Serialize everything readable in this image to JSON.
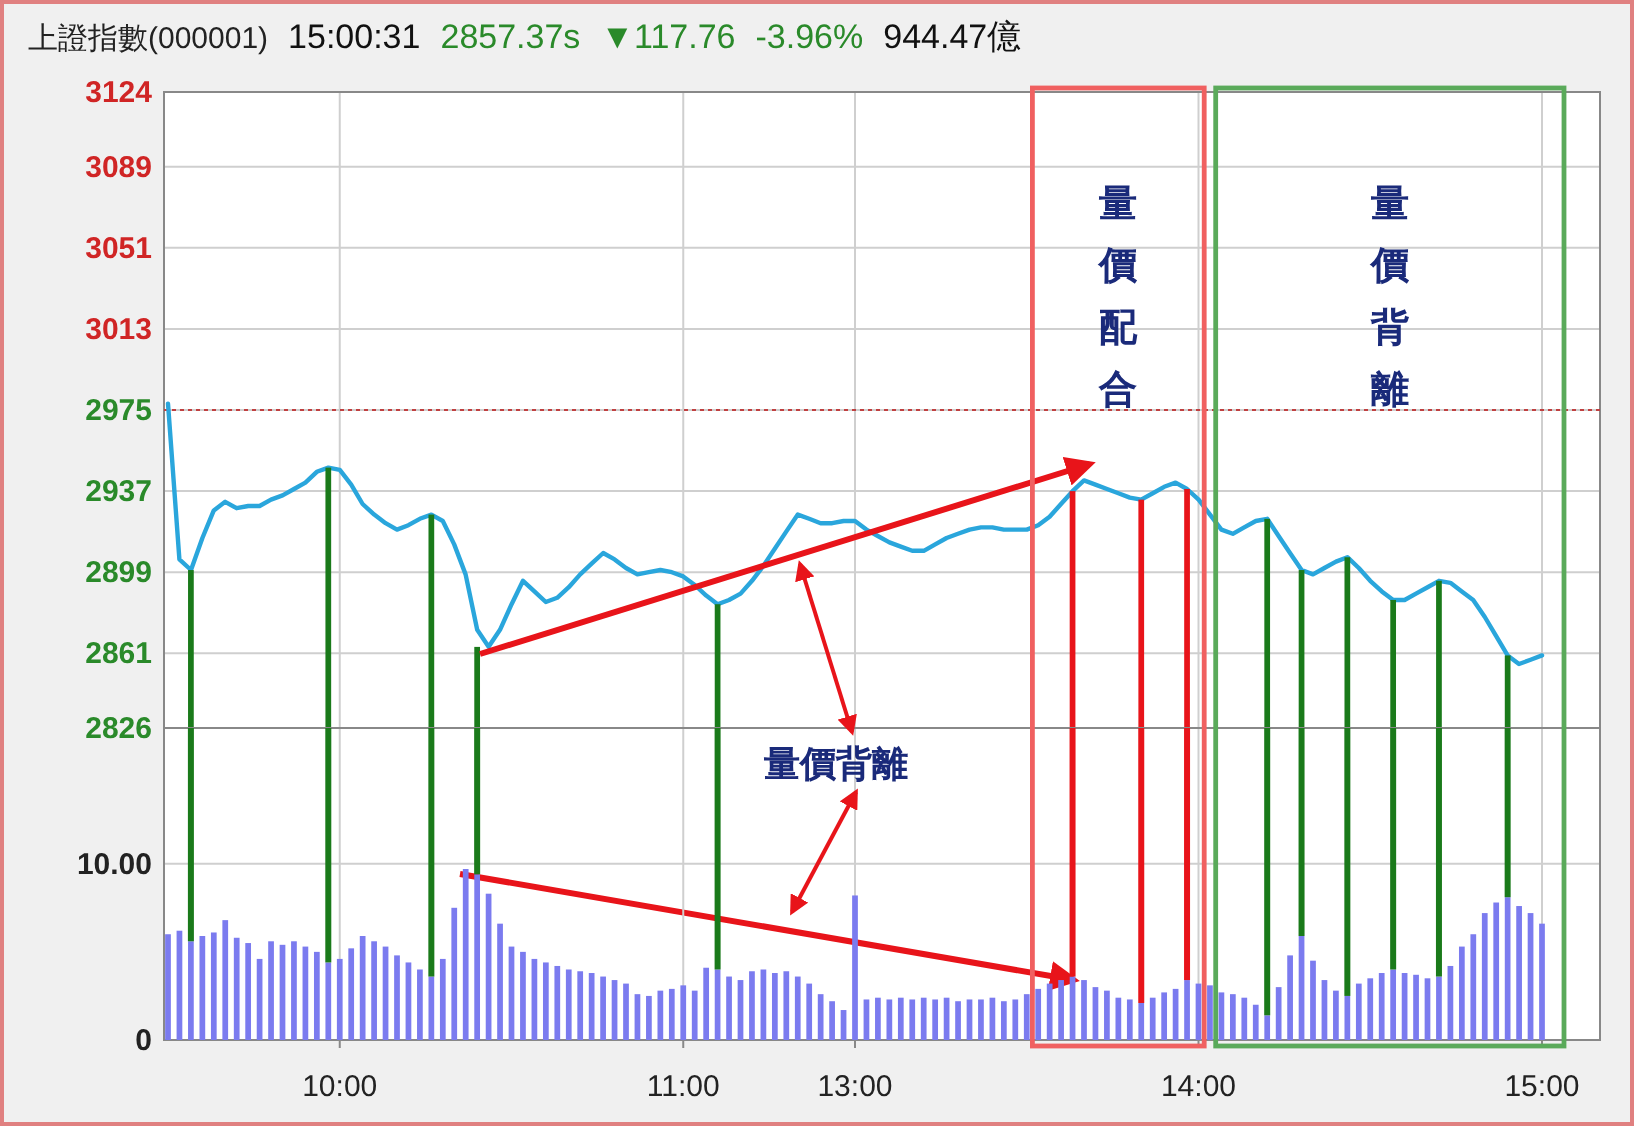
{
  "chart_data": [
    {
      "type": "line",
      "title": "上證指數(000001)",
      "annotations": [
        "15:00:31",
        "2857.37s",
        "▼117.76",
        "-3.96%",
        "944.47億",
        "量價配合",
        "量價背離"
      ],
      "categories": [
        null,
        null,
        null,
        null,
        null,
        null,
        null,
        null,
        null,
        null,
        null,
        null,
        null,
        null,
        null,
        null,
        null,
        null,
        null,
        null,
        null,
        null,
        null,
        null,
        null,
        null,
        null,
        null,
        null,
        null,
        null,
        null,
        null,
        null,
        null,
        null,
        null,
        null,
        null,
        null,
        null,
        null,
        null,
        null,
        null,
        null,
        null,
        null,
        null,
        null,
        null,
        null,
        null,
        null,
        null,
        null,
        null,
        null,
        null,
        null,
        null,
        null,
        null,
        null,
        null,
        null,
        null,
        null,
        null,
        null,
        null,
        null,
        null,
        null,
        null,
        null,
        null,
        null,
        null,
        null,
        null,
        null,
        null,
        null,
        null,
        null,
        null,
        null,
        null,
        null,
        null,
        null,
        null,
        null,
        null,
        null,
        null,
        null,
        null,
        null,
        null,
        null,
        null,
        null,
        null,
        null,
        null,
        null,
        null,
        null,
        null,
        null,
        null,
        null,
        null,
        null,
        null,
        null,
        null,
        null,
        null
      ],
      "ylim": [
        2826,
        3124
      ],
      "yticks": [
        2826,
        2861,
        2899,
        2937,
        2975,
        3013,
        3051,
        3089,
        3124
      ],
      "tick_labels": "y",
      "grid": true,
      "series": [
        {
          "values": [
            2978,
            2905,
            2900,
            2915,
            2928,
            2932,
            2929,
            2930,
            2930,
            2933,
            2935,
            2938,
            2941,
            2946,
            2948,
            2947,
            2940,
            2931,
            2926,
            2922,
            2919,
            2921,
            2924,
            2926,
            2923,
            2912,
            2898,
            2872,
            2864,
            2872,
            2884,
            2895,
            2890,
            2885,
            2887,
            2892,
            2898,
            2903,
            2908,
            2905,
            2901,
            2898,
            2899,
            2900,
            2899,
            2897,
            2893,
            2888,
            2884,
            2886,
            2889,
            2895,
            2902,
            2910,
            2918,
            2926,
            2924,
            2922,
            2922,
            2923,
            2923,
            2919,
            2916,
            2913,
            2911,
            2909,
            2909,
            2912,
            2915,
            2917,
            2919,
            2920,
            2920,
            2919,
            2919,
            2919,
            2921,
            2925,
            2931,
            2937,
            2942,
            2940,
            2938,
            2936,
            2934,
            2933,
            2936,
            2939,
            2941,
            2938,
            2933,
            2926,
            2919,
            2917,
            2920,
            2923,
            2924,
            2916,
            2908,
            2900,
            2898,
            2901,
            2904,
            2906,
            2901,
            2895,
            2890,
            2886,
            2886,
            2889,
            2892,
            2895,
            2894,
            2890,
            2886,
            2878,
            2869,
            2860,
            2856,
            2858,
            2860
          ],
          "color": "#2aa6dc"
        },
        {
          "type": "bar",
          "color": "#1a7a1a",
          "values": [
            null,
            null,
            2900,
            null,
            null,
            null,
            null,
            null,
            null,
            null,
            null,
            null,
            null,
            null,
            2948,
            null,
            null,
            null,
            null,
            null,
            null,
            null,
            null,
            2926,
            null,
            null,
            null,
            2864,
            null,
            null,
            null,
            null,
            null,
            null,
            null,
            null,
            null,
            null,
            null,
            null,
            null,
            null,
            null,
            null,
            null,
            null,
            null,
            null,
            2884,
            null,
            null,
            null,
            null,
            null,
            null,
            null,
            null,
            null,
            null,
            null,
            null,
            null,
            null,
            null,
            null,
            null,
            null,
            null,
            null,
            null,
            null,
            null,
            null,
            null,
            null,
            null,
            null,
            null,
            null,
            null,
            null,
            null,
            null,
            null,
            null,
            null,
            null,
            null,
            null,
            null,
            null,
            null,
            null,
            null,
            null,
            null,
            2924,
            null,
            null,
            2900,
            null,
            null,
            null,
            2906,
            null,
            null,
            null,
            2886,
            null,
            null,
            null,
            2895,
            null,
            null,
            null,
            null,
            null,
            2860,
            null,
            null,
            null
          ]
        },
        {
          "type": "bar",
          "color": "#e8141a",
          "values": [
            null,
            null,
            null,
            null,
            null,
            null,
            null,
            null,
            null,
            null,
            null,
            null,
            null,
            null,
            null,
            null,
            null,
            null,
            null,
            null,
            null,
            null,
            null,
            null,
            null,
            null,
            null,
            null,
            null,
            null,
            null,
            null,
            null,
            null,
            null,
            null,
            null,
            null,
            null,
            null,
            null,
            null,
            null,
            null,
            null,
            null,
            null,
            null,
            null,
            null,
            null,
            null,
            null,
            null,
            null,
            null,
            null,
            null,
            null,
            null,
            null,
            null,
            null,
            null,
            null,
            null,
            null,
            null,
            null,
            null,
            null,
            null,
            null,
            null,
            null,
            null,
            null,
            null,
            null,
            2937,
            null,
            null,
            null,
            null,
            null,
            2933,
            null,
            null,
            null,
            2938,
            null,
            null,
            null,
            null,
            null,
            null,
            null,
            null,
            null,
            null,
            null,
            null,
            null,
            null,
            null,
            null,
            null,
            null,
            null,
            null,
            null,
            null,
            null,
            null,
            null,
            null,
            null,
            null,
            null,
            null,
            null
          ]
        }
      ],
      "ref_lines": [
        {
          "axis": "y",
          "value": 2975,
          "color": "#c04040",
          "line_style": "dotted"
        }
      ]
    },
    {
      "type": "bar",
      "categories": [
        null,
        null,
        null,
        null,
        null,
        null,
        null,
        null,
        null,
        null,
        null,
        null,
        null,
        null,
        null,
        "10:00",
        null,
        null,
        null,
        null,
        null,
        null,
        null,
        null,
        null,
        null,
        null,
        null,
        null,
        null,
        null,
        null,
        null,
        null,
        null,
        null,
        null,
        null,
        null,
        null,
        null,
        null,
        null,
        null,
        null,
        "11:00",
        null,
        null,
        null,
        null,
        null,
        null,
        null,
        null,
        null,
        null,
        null,
        null,
        null,
        null,
        "13:00",
        null,
        null,
        null,
        null,
        null,
        null,
        null,
        null,
        null,
        null,
        null,
        null,
        null,
        null,
        null,
        null,
        null,
        null,
        null,
        null,
        null,
        null,
        null,
        null,
        null,
        null,
        null,
        null,
        null,
        "14:00",
        null,
        null,
        null,
        null,
        null,
        null,
        null,
        null,
        null,
        null,
        null,
        null,
        null,
        null,
        null,
        null,
        null,
        null,
        null,
        null,
        null,
        null,
        null,
        null,
        null,
        null,
        null,
        null,
        null,
        "15:00"
      ],
      "ylim": [
        0,
        17.7
      ],
      "yticks": [
        0,
        {
          "value": 10,
          "label": "10.00"
        }
      ],
      "grid": true,
      "annotations": [
        "量價背離"
      ],
      "series": [
        {
          "values": [
            6.0,
            6.2,
            5.6,
            5.9,
            6.1,
            6.8,
            5.8,
            5.5,
            4.6,
            5.6,
            5.4,
            5.6,
            5.3,
            5.0,
            4.4,
            4.6,
            5.2,
            5.9,
            5.6,
            5.3,
            4.8,
            4.4,
            4.0,
            3.6,
            4.6,
            7.5,
            9.7,
            9.4,
            8.3,
            6.6,
            5.3,
            5.0,
            4.6,
            4.4,
            4.2,
            4.0,
            3.9,
            3.8,
            3.6,
            3.4,
            3.2,
            2.6,
            2.5,
            2.8,
            2.9,
            3.1,
            2.8,
            4.1,
            4.0,
            3.6,
            3.4,
            3.9,
            4.0,
            3.8,
            3.9,
            3.6,
            3.2,
            2.6,
            2.2,
            1.7,
            8.2,
            2.3,
            2.4,
            2.3,
            2.4,
            2.3,
            2.4,
            2.3,
            2.4,
            2.2,
            2.3,
            2.3,
            2.4,
            2.2,
            2.3,
            2.6,
            2.9,
            3.2,
            3.4,
            3.6,
            3.4,
            3.0,
            2.8,
            2.4,
            2.3,
            2.1,
            2.4,
            2.7,
            2.9,
            3.4,
            3.2,
            3.1,
            2.7,
            2.6,
            2.4,
            2.0,
            1.4,
            3.0,
            4.8,
            5.9,
            4.5,
            3.4,
            2.8,
            2.5,
            3.2,
            3.5,
            3.8,
            4.0,
            3.8,
            3.7,
            3.5,
            3.6,
            4.2,
            5.3,
            6.0,
            7.2,
            7.8,
            8.1,
            7.6,
            7.2,
            6.6
          ],
          "color": "#7b7bef"
        },
        {
          "type": "bar",
          "color": "#1a7a1a",
          "base": [
            null,
            null,
            5.6,
            null,
            null,
            null,
            null,
            null,
            null,
            null,
            null,
            null,
            null,
            null,
            4.4,
            null,
            null,
            null,
            null,
            null,
            null,
            null,
            null,
            3.6,
            null,
            null,
            null,
            9.4,
            null,
            null,
            null,
            null,
            null,
            null,
            null,
            null,
            null,
            null,
            null,
            null,
            null,
            null,
            null,
            null,
            null,
            null,
            null,
            null,
            4.0,
            null,
            null,
            null,
            null,
            null,
            null,
            null,
            null,
            null,
            null,
            null,
            null,
            null,
            null,
            null,
            null,
            null,
            null,
            null,
            null,
            null,
            null,
            null,
            null,
            null,
            null,
            null,
            null,
            null,
            null,
            null,
            null,
            null,
            null,
            null,
            null,
            null,
            null,
            null,
            null,
            null,
            null,
            null,
            null,
            null,
            null,
            null,
            1.4,
            null,
            null,
            5.9,
            null,
            null,
            null,
            2.5,
            null,
            null,
            null,
            4.0,
            null,
            null,
            null,
            3.6,
            null,
            null,
            null,
            null,
            null,
            8.1,
            null,
            null,
            null
          ],
          "values": [
            null,
            null,
            12.1,
            null,
            null,
            null,
            null,
            null,
            null,
            null,
            null,
            null,
            null,
            null,
            13.3,
            null,
            null,
            null,
            null,
            null,
            null,
            null,
            null,
            14.1,
            null,
            null,
            null,
            8.3,
            null,
            null,
            null,
            null,
            null,
            null,
            null,
            null,
            null,
            null,
            null,
            null,
            null,
            null,
            null,
            null,
            null,
            null,
            null,
            null,
            13.7,
            null,
            null,
            null,
            null,
            null,
            null,
            null,
            null,
            null,
            null,
            null,
            null,
            null,
            null,
            null,
            null,
            null,
            null,
            null,
            null,
            null,
            null,
            null,
            null,
            null,
            null,
            null,
            null,
            null,
            null,
            null,
            null,
            null,
            null,
            null,
            null,
            null,
            null,
            null,
            null,
            null,
            null,
            null,
            null,
            null,
            null,
            null,
            16.3,
            null,
            null,
            11.8,
            null,
            null,
            null,
            15.2,
            null,
            null,
            null,
            13.7,
            null,
            null,
            null,
            14.1,
            null,
            null,
            null,
            null,
            null,
            9.6,
            null,
            null,
            null
          ]
        },
        {
          "type": "bar",
          "color": "#e8141a",
          "base": [
            null,
            null,
            null,
            null,
            null,
            null,
            null,
            null,
            null,
            null,
            null,
            null,
            null,
            null,
            null,
            null,
            null,
            null,
            null,
            null,
            null,
            null,
            null,
            null,
            null,
            null,
            null,
            null,
            null,
            null,
            null,
            null,
            null,
            null,
            null,
            null,
            null,
            null,
            null,
            null,
            null,
            null,
            null,
            null,
            null,
            null,
            null,
            null,
            null,
            null,
            null,
            null,
            null,
            null,
            null,
            null,
            null,
            null,
            null,
            null,
            null,
            null,
            null,
            null,
            null,
            null,
            null,
            null,
            null,
            null,
            null,
            null,
            null,
            null,
            null,
            null,
            null,
            null,
            null,
            3.6,
            null,
            null,
            null,
            null,
            null,
            2.1,
            null,
            null,
            null,
            3.4,
            null,
            null,
            null,
            null,
            null,
            null,
            null,
            null,
            null,
            null,
            null,
            null,
            null,
            null,
            null,
            null,
            null,
            null,
            null,
            null,
            null,
            null,
            null,
            null,
            null,
            null,
            null,
            null,
            null,
            null,
            null
          ],
          "values": [
            null,
            null,
            null,
            null,
            null,
            null,
            null,
            null,
            null,
            null,
            null,
            null,
            null,
            null,
            null,
            null,
            null,
            null,
            null,
            null,
            null,
            null,
            null,
            null,
            null,
            null,
            null,
            null,
            null,
            null,
            null,
            null,
            null,
            null,
            null,
            null,
            null,
            null,
            null,
            null,
            null,
            null,
            null,
            null,
            null,
            null,
            null,
            null,
            null,
            null,
            null,
            null,
            null,
            null,
            null,
            null,
            null,
            null,
            null,
            null,
            null,
            null,
            null,
            null,
            null,
            null,
            null,
            null,
            null,
            null,
            null,
            null,
            null,
            null,
            null,
            null,
            null,
            null,
            null,
            14.1,
            null,
            null,
            null,
            null,
            null,
            15.6,
            null,
            null,
            null,
            14.3,
            null,
            null,
            null,
            null,
            null,
            null,
            null,
            null,
            null,
            null,
            null,
            null,
            null,
            null,
            null,
            null,
            null,
            null,
            null,
            null,
            null,
            null,
            null,
            null,
            null,
            null,
            null,
            null,
            null,
            null,
            null
          ]
        }
      ]
    }
  ]
}
